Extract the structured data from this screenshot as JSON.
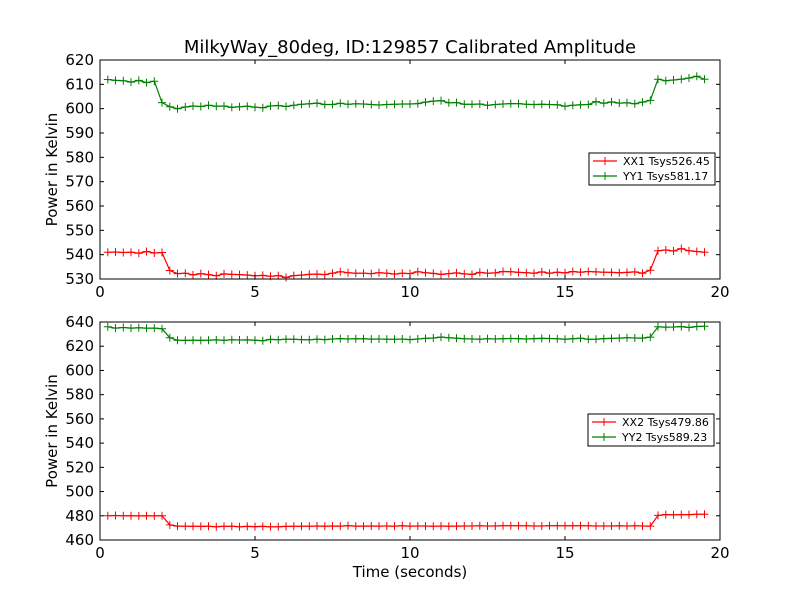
{
  "figure": {
    "title": "MilkyWay_80deg, ID:129857 Calibrated Amplitude",
    "xlabel": "Time (seconds)"
  },
  "colors": {
    "xx": "#ff0000",
    "yy": "#008000"
  },
  "chart_data": [
    {
      "type": "line",
      "title": "MilkyWay_80deg, ID:129857 Calibrated Amplitude",
      "xlabel": "",
      "ylabel": "Power in Kelvin",
      "xlim": [
        0,
        20
      ],
      "ylim": [
        530,
        620
      ],
      "xticks": [
        0,
        5,
        10,
        15,
        20
      ],
      "yticks": [
        530,
        540,
        550,
        560,
        570,
        580,
        590,
        600,
        610,
        620
      ],
      "grid": false,
      "legend_position": "center-right",
      "series": [
        {
          "name": "XX1 Tsys526.45",
          "color": "#ff0000",
          "x": [
            0.25,
            0.5,
            0.75,
            1.0,
            1.25,
            1.5,
            1.75,
            2.0,
            2.25,
            2.5,
            2.75,
            3.0,
            3.25,
            3.5,
            3.75,
            4.0,
            4.25,
            4.5,
            4.75,
            5.0,
            5.25,
            5.5,
            5.75,
            6.0,
            6.25,
            6.5,
            6.75,
            7.0,
            7.25,
            7.5,
            7.75,
            8.0,
            8.25,
            8.5,
            8.75,
            9.0,
            9.25,
            9.5,
            9.75,
            10.0,
            10.25,
            10.5,
            10.75,
            11.0,
            11.25,
            11.5,
            11.75,
            12.0,
            12.25,
            12.5,
            12.75,
            13.0,
            13.25,
            13.5,
            13.75,
            14.0,
            14.25,
            14.5,
            14.75,
            15.0,
            15.25,
            15.5,
            15.75,
            16.0,
            16.25,
            16.5,
            16.75,
            17.0,
            17.25,
            17.5,
            17.75,
            18.0,
            18.25,
            18.5,
            18.75,
            19.0,
            19.25,
            19.5
          ],
          "values": [
            541.0,
            541.1,
            540.9,
            541.0,
            540.6,
            541.3,
            540.7,
            540.9,
            533.5,
            532.2,
            532.4,
            531.7,
            532.2,
            531.8,
            531.3,
            532.1,
            531.9,
            531.8,
            531.6,
            531.3,
            531.5,
            531.1,
            531.4,
            530.6,
            531.4,
            531.6,
            531.9,
            532.0,
            531.8,
            532.4,
            533.0,
            532.6,
            532.4,
            532.4,
            532.2,
            532.6,
            532.4,
            532.0,
            532.4,
            532.2,
            533.0,
            532.6,
            532.3,
            531.9,
            532.2,
            532.5,
            532.1,
            531.9,
            532.7,
            532.4,
            532.5,
            533.1,
            533.0,
            532.7,
            532.6,
            532.4,
            532.9,
            532.4,
            532.8,
            532.5,
            533.1,
            532.8,
            533.1,
            532.9,
            532.8,
            532.7,
            532.6,
            532.7,
            532.9,
            532.4,
            533.6,
            541.6,
            541.9,
            541.5,
            542.5,
            541.6,
            541.3,
            541.0
          ]
        },
        {
          "name": "YY1 Tsys581.17",
          "color": "#008000",
          "x": [
            0.25,
            0.5,
            0.75,
            1.0,
            1.25,
            1.5,
            1.75,
            2.0,
            2.25,
            2.5,
            2.75,
            3.0,
            3.25,
            3.5,
            3.75,
            4.0,
            4.25,
            4.5,
            4.75,
            5.0,
            5.25,
            5.5,
            5.75,
            6.0,
            6.25,
            6.5,
            6.75,
            7.0,
            7.25,
            7.5,
            7.75,
            8.0,
            8.25,
            8.5,
            8.75,
            9.0,
            9.25,
            9.5,
            9.75,
            10.0,
            10.25,
            10.5,
            10.75,
            11.0,
            11.25,
            11.5,
            11.75,
            12.0,
            12.25,
            12.5,
            12.75,
            13.0,
            13.25,
            13.5,
            13.75,
            14.0,
            14.25,
            14.5,
            14.75,
            15.0,
            15.25,
            15.5,
            15.75,
            16.0,
            16.25,
            16.5,
            16.75,
            17.0,
            17.25,
            17.5,
            17.75,
            18.0,
            18.25,
            18.5,
            18.75,
            19.0,
            19.25,
            19.5
          ],
          "values": [
            612.0,
            611.6,
            611.5,
            610.9,
            611.6,
            610.7,
            611.3,
            602.5,
            600.8,
            600.0,
            600.7,
            601.1,
            600.9,
            601.4,
            601.0,
            601.1,
            600.5,
            600.8,
            601.0,
            600.6,
            600.4,
            601.1,
            601.3,
            600.9,
            601.4,
            601.8,
            602.0,
            602.3,
            601.7,
            601.7,
            602.2,
            601.8,
            602.0,
            601.9,
            601.7,
            601.5,
            601.7,
            601.8,
            601.9,
            601.9,
            602.1,
            602.7,
            603.1,
            603.3,
            602.4,
            602.5,
            601.8,
            601.8,
            601.9,
            601.4,
            601.7,
            601.9,
            602.1,
            602.1,
            601.8,
            601.7,
            601.8,
            601.7,
            601.6,
            601.0,
            601.4,
            601.6,
            601.7,
            602.9,
            602.2,
            602.8,
            602.3,
            602.4,
            602.0,
            602.7,
            603.4,
            612.1,
            611.5,
            611.8,
            612.1,
            612.6,
            613.3,
            612.1
          ]
        }
      ]
    },
    {
      "type": "line",
      "title": "",
      "xlabel": "Time (seconds)",
      "ylabel": "Power in Kelvin",
      "xlim": [
        0,
        20
      ],
      "ylim": [
        460,
        640
      ],
      "xticks": [
        0,
        5,
        10,
        15,
        20
      ],
      "yticks": [
        460,
        480,
        500,
        520,
        540,
        560,
        580,
        600,
        620,
        640
      ],
      "grid": false,
      "legend_position": "center-right",
      "series": [
        {
          "name": "XX2 Tsys479.86",
          "color": "#ff0000",
          "x": [
            0.25,
            0.5,
            0.75,
            1.0,
            1.25,
            1.5,
            1.75,
            2.0,
            2.25,
            2.5,
            2.75,
            3.0,
            3.25,
            3.5,
            3.75,
            4.0,
            4.25,
            4.5,
            4.75,
            5.0,
            5.25,
            5.5,
            5.75,
            6.0,
            6.25,
            6.5,
            6.75,
            7.0,
            7.25,
            7.5,
            7.75,
            8.0,
            8.25,
            8.5,
            8.75,
            9.0,
            9.25,
            9.5,
            9.75,
            10.0,
            10.25,
            10.5,
            10.75,
            11.0,
            11.25,
            11.5,
            11.75,
            12.0,
            12.25,
            12.5,
            12.75,
            13.0,
            13.25,
            13.5,
            13.75,
            14.0,
            14.25,
            14.5,
            14.75,
            15.0,
            15.25,
            15.5,
            15.75,
            16.0,
            16.25,
            16.5,
            16.75,
            17.0,
            17.25,
            17.5,
            17.75,
            18.0,
            18.25,
            18.5,
            18.75,
            19.0,
            19.25,
            19.5
          ],
          "values": [
            480.0,
            480.2,
            480.0,
            480.1,
            479.9,
            480.0,
            479.9,
            480.1,
            472.5,
            471.5,
            471.4,
            471.3,
            471.2,
            471.4,
            471.0,
            471.3,
            471.4,
            471.0,
            471.2,
            471.1,
            471.2,
            470.9,
            471.0,
            471.2,
            471.3,
            471.4,
            471.4,
            471.6,
            471.4,
            471.6,
            471.5,
            471.8,
            471.5,
            471.5,
            471.6,
            471.5,
            471.6,
            471.5,
            471.7,
            471.5,
            471.6,
            471.6,
            471.3,
            471.6,
            471.4,
            471.5,
            471.6,
            471.6,
            471.7,
            471.6,
            471.6,
            471.8,
            471.8,
            471.8,
            471.7,
            471.6,
            471.6,
            471.8,
            471.8,
            471.7,
            471.8,
            471.8,
            471.7,
            471.6,
            471.6,
            471.6,
            471.7,
            471.6,
            471.7,
            471.6,
            471.5,
            480.3,
            481.0,
            480.8,
            481.0,
            481.0,
            481.2,
            481.3
          ]
        },
        {
          "name": "YY2 Tsys589.23",
          "color": "#008000",
          "x": [
            0.25,
            0.5,
            0.75,
            1.0,
            1.25,
            1.5,
            1.75,
            2.0,
            2.25,
            2.5,
            2.75,
            3.0,
            3.25,
            3.5,
            3.75,
            4.0,
            4.25,
            4.5,
            4.75,
            5.0,
            5.25,
            5.5,
            5.75,
            6.0,
            6.25,
            6.5,
            6.75,
            7.0,
            7.25,
            7.5,
            7.75,
            8.0,
            8.25,
            8.5,
            8.75,
            9.0,
            9.25,
            9.5,
            9.75,
            10.0,
            10.25,
            10.5,
            10.75,
            11.0,
            11.25,
            11.5,
            11.75,
            12.0,
            12.25,
            12.5,
            12.75,
            13.0,
            13.25,
            13.5,
            13.75,
            14.0,
            14.25,
            14.5,
            14.75,
            15.0,
            15.25,
            15.5,
            15.75,
            16.0,
            16.25,
            16.5,
            16.75,
            17.0,
            17.25,
            17.5,
            17.75,
            18.0,
            18.25,
            18.5,
            18.75,
            19.0,
            19.25,
            19.5
          ],
          "values": [
            636.0,
            635.0,
            635.5,
            635.0,
            635.2,
            635.0,
            635.0,
            634.5,
            627.0,
            625.0,
            624.8,
            625.0,
            624.8,
            625.0,
            625.2,
            624.9,
            625.3,
            625.1,
            625.2,
            625.0,
            624.6,
            625.6,
            625.4,
            625.8,
            625.7,
            625.5,
            625.3,
            625.8,
            625.5,
            626.0,
            626.3,
            626.0,
            626.2,
            626.1,
            625.9,
            626.0,
            625.8,
            625.7,
            626.0,
            625.5,
            626.0,
            626.5,
            626.8,
            627.5,
            627.0,
            626.6,
            626.2,
            626.0,
            625.8,
            626.2,
            626.0,
            626.2,
            626.4,
            626.3,
            626.0,
            626.3,
            626.5,
            626.4,
            626.1,
            625.8,
            626.2,
            626.6,
            625.7,
            625.8,
            626.3,
            626.5,
            626.7,
            627.0,
            626.8,
            626.7,
            627.5,
            636.0,
            635.8,
            635.9,
            636.2,
            635.5,
            636.3,
            636.5
          ]
        }
      ]
    }
  ]
}
